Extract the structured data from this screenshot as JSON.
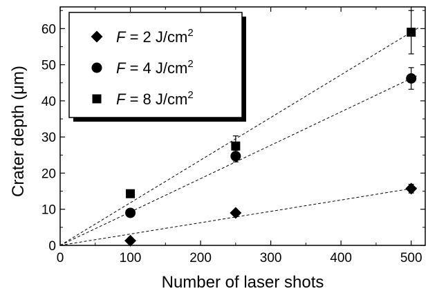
{
  "chart_data": {
    "type": "scatter",
    "title": "",
    "xlabel": "Number of laser shots",
    "ylabel": "Crater depth (μm)",
    "xlim": [
      0,
      520
    ],
    "ylim": [
      0,
      66
    ],
    "xticks": [
      "0",
      "100",
      "200",
      "300",
      "400",
      "500"
    ],
    "yticks": [
      "0",
      "10",
      "20",
      "30",
      "40",
      "50",
      "60"
    ],
    "grid": false,
    "legend_position": "top-left",
    "series": [
      {
        "name": "F = 2 J/cm²",
        "legend_parts": [
          "F",
          " = 2 J/cm",
          "2"
        ],
        "marker": "diamond",
        "x": [
          100,
          250,
          500
        ],
        "y": [
          1.3,
          9.0,
          15.7
        ],
        "err": [
          0,
          0,
          1.2
        ],
        "fit_slope": 0.0314
      },
      {
        "name": "F = 4 J/cm²",
        "legend_parts": [
          "F",
          " = 4 J/cm",
          "2"
        ],
        "marker": "circle",
        "x": [
          100,
          250,
          500
        ],
        "y": [
          9.0,
          24.7,
          46.2
        ],
        "err": [
          0,
          1.6,
          3.0
        ],
        "fit_slope": 0.0924
      },
      {
        "name": "F = 8 J/cm²",
        "legend_parts": [
          "F",
          " = 8 J/cm",
          "2"
        ],
        "marker": "square",
        "x": [
          100,
          250,
          500
        ],
        "y": [
          14.3,
          27.5,
          59.0
        ],
        "err": [
          0,
          2.8,
          6.0
        ],
        "fit_slope": 0.118
      }
    ]
  }
}
